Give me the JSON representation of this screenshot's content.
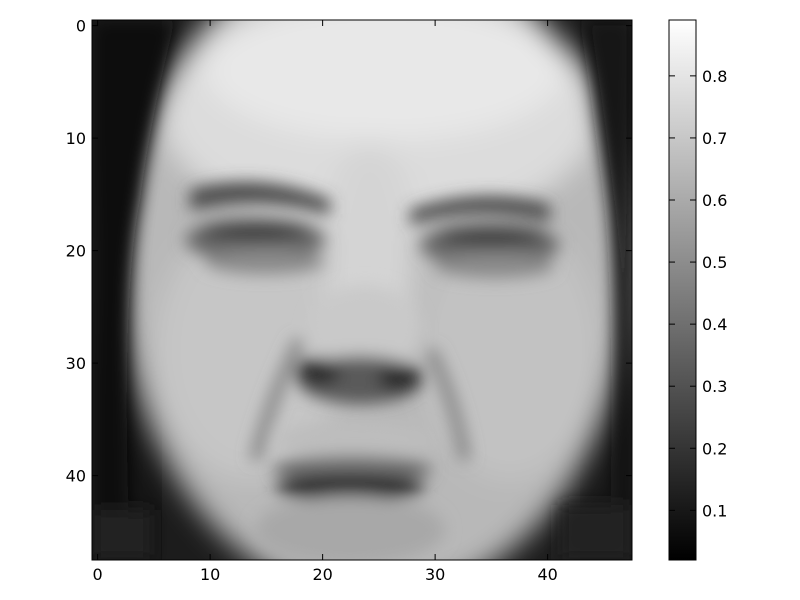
{
  "image": {
    "subject": "face-grayscale",
    "colormap": "gray",
    "rows": 48,
    "cols": 48,
    "xlim": [
      -0.5,
      47.5
    ],
    "ylim": [
      47.5,
      -0.5
    ]
  },
  "x_axis": {
    "ticks": [
      0,
      10,
      20,
      30,
      40
    ],
    "labels": [
      "0",
      "10",
      "20",
      "30",
      "40"
    ]
  },
  "y_axis": {
    "ticks": [
      0,
      10,
      20,
      30,
      40
    ],
    "labels": [
      "0",
      "10",
      "20",
      "30",
      "40"
    ]
  },
  "colorbar": {
    "range": [
      0.02,
      0.89
    ],
    "ticks": [
      0.1,
      0.2,
      0.3,
      0.4,
      0.5,
      0.6,
      0.7,
      0.8
    ],
    "labels": [
      "0.1",
      "0.2",
      "0.3",
      "0.4",
      "0.5",
      "0.6",
      "0.7",
      "0.8"
    ],
    "colors": {
      "low": "#000000",
      "high": "#ffffff"
    }
  }
}
